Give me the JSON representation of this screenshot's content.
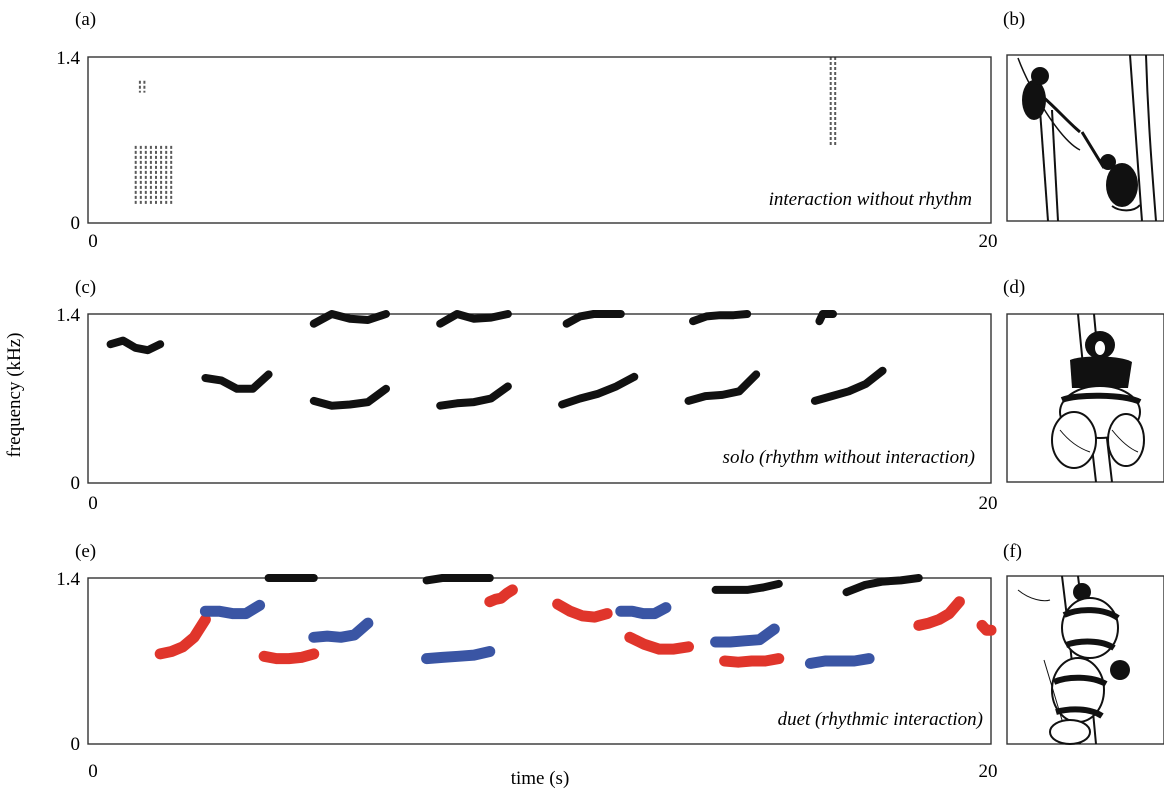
{
  "chart_data": [
    {
      "type": "spectrogram",
      "panel_label": "(a)",
      "xlim": [
        0,
        20
      ],
      "ylim": [
        0,
        1.4
      ],
      "x_ticks": [
        "0",
        "20"
      ],
      "y_ticks": [
        "0",
        "1.4"
      ],
      "annotation": "interaction without rhythm",
      "series": [
        {
          "color": "#222222",
          "calls": [
            {
              "t0": 1.0,
              "t1": 1.9,
              "f": [
                0.15,
                0.65
              ]
            },
            {
              "t0": 1.1,
              "t1": 1.3,
              "f": [
                1.1,
                1.2
              ]
            },
            {
              "t0": 16.4,
              "t1": 16.6,
              "f": [
                0.65,
                1.4
              ]
            }
          ]
        }
      ]
    },
    {
      "type": "spectrogram",
      "panel_label": "(c)",
      "xlim": [
        0,
        20
      ],
      "ylim": [
        0,
        1.4
      ],
      "x_ticks": [
        "0",
        "20"
      ],
      "y_ticks": [
        "0",
        "1.4"
      ],
      "annotation": "solo (rhythm without interaction)",
      "series": [
        {
          "color": "#111111",
          "calls": [
            {
              "t0": 0.5,
              "t1": 1.6,
              "f": [
                1.15,
                1.18,
                1.12,
                1.1,
                1.15
              ]
            },
            {
              "t0": 2.6,
              "t1": 4.0,
              "f": [
                0.87,
                0.85,
                0.78,
                0.78,
                0.9
              ]
            },
            {
              "t0": 5.0,
              "t1": 6.6,
              "f": [
                0.68,
                0.64,
                0.65,
                0.67,
                0.78
              ]
            },
            {
              "t0": 7.8,
              "t1": 9.3,
              "f": [
                0.64,
                0.66,
                0.67,
                0.7,
                0.8
              ]
            },
            {
              "t0": 10.5,
              "t1": 12.1,
              "f": [
                0.65,
                0.7,
                0.74,
                0.8,
                0.88
              ]
            },
            {
              "t0": 13.3,
              "t1": 14.8,
              "f": [
                0.68,
                0.72,
                0.73,
                0.76,
                0.9
              ]
            },
            {
              "t0": 16.1,
              "t1": 17.6,
              "f": [
                0.68,
                0.72,
                0.76,
                0.82,
                0.93
              ]
            },
            {
              "t0": 5.0,
              "t1": 6.6,
              "f": [
                1.32,
                1.4,
                1.36,
                1.35,
                1.4
              ]
            },
            {
              "t0": 7.8,
              "t1": 9.3,
              "f": [
                1.32,
                1.4,
                1.36,
                1.37,
                1.4
              ]
            },
            {
              "t0": 10.6,
              "t1": 11.8,
              "f": [
                1.32,
                1.38,
                1.4,
                1.4,
                1.4
              ]
            },
            {
              "t0": 13.4,
              "t1": 14.6,
              "f": [
                1.34,
                1.38,
                1.39,
                1.39,
                1.4
              ]
            },
            {
              "t0": 16.2,
              "t1": 16.5,
              "f": [
                1.34,
                1.4,
                1.4,
                1.4,
                1.4
              ]
            }
          ]
        }
      ]
    },
    {
      "type": "spectrogram",
      "panel_label": "(e)",
      "xlim": [
        0,
        20
      ],
      "ylim": [
        0,
        1.4
      ],
      "x_ticks": [
        "0",
        "20"
      ],
      "y_ticks": [
        "0",
        "1.4"
      ],
      "xlabel": "time (s)",
      "annotation": "duet (rhythmic interaction)",
      "series": [
        {
          "color": "#e0352b",
          "calls": [
            {
              "t0": 1.6,
              "t1": 2.6,
              "f": [
                0.76,
                0.78,
                0.82,
                0.9,
                1.05
              ]
            },
            {
              "t0": 3.9,
              "t1": 5.0,
              "f": [
                0.74,
                0.72,
                0.72,
                0.73,
                0.76
              ]
            },
            {
              "t0": 8.9,
              "t1": 9.4,
              "f": [
                1.2,
                1.22,
                1.23,
                1.27,
                1.3
              ]
            },
            {
              "t0": 10.4,
              "t1": 11.5,
              "f": [
                1.18,
                1.12,
                1.08,
                1.07,
                1.1
              ]
            },
            {
              "t0": 12.0,
              "t1": 13.3,
              "f": [
                0.9,
                0.84,
                0.8,
                0.8,
                0.82
              ]
            },
            {
              "t0": 14.1,
              "t1": 15.3,
              "f": [
                0.7,
                0.69,
                0.7,
                0.7,
                0.72
              ]
            },
            {
              "t0": 18.4,
              "t1": 19.3,
              "f": [
                1.0,
                1.02,
                1.05,
                1.1,
                1.2
              ]
            },
            {
              "t0": 19.8,
              "t1": 20.0,
              "f": [
                1.0,
                0.98,
                0.96,
                0.96,
                0.96
              ]
            }
          ]
        },
        {
          "color": "#3a55a4",
          "calls": [
            {
              "t0": 2.6,
              "t1": 3.8,
              "f": [
                1.12,
                1.12,
                1.1,
                1.1,
                1.17
              ]
            },
            {
              "t0": 5.0,
              "t1": 6.2,
              "f": [
                0.9,
                0.91,
                0.9,
                0.92,
                1.02
              ]
            },
            {
              "t0": 7.5,
              "t1": 8.9,
              "f": [
                0.72,
                0.73,
                0.74,
                0.75,
                0.78
              ]
            },
            {
              "t0": 11.8,
              "t1": 12.8,
              "f": [
                1.12,
                1.12,
                1.1,
                1.1,
                1.15
              ]
            },
            {
              "t0": 13.9,
              "t1": 15.2,
              "f": [
                0.86,
                0.86,
                0.87,
                0.88,
                0.97
              ]
            },
            {
              "t0": 16.0,
              "t1": 17.3,
              "f": [
                0.68,
                0.7,
                0.7,
                0.7,
                0.72
              ]
            }
          ]
        },
        {
          "color": "#111111",
          "calls": [
            {
              "t0": 4.0,
              "t1": 5.0,
              "f": [
                1.4,
                1.4,
                1.4,
                1.4,
                1.4
              ]
            },
            {
              "t0": 7.5,
              "t1": 8.9,
              "f": [
                1.38,
                1.4,
                1.4,
                1.4,
                1.4
              ]
            },
            {
              "t0": 13.9,
              "t1": 15.3,
              "f": [
                1.3,
                1.3,
                1.3,
                1.32,
                1.35
              ]
            },
            {
              "t0": 16.8,
              "t1": 18.4,
              "f": [
                1.28,
                1.34,
                1.37,
                1.38,
                1.4
              ]
            }
          ]
        }
      ]
    }
  ],
  "shared": {
    "ylabel": "frequency (kHz)"
  },
  "illustrations": [
    {
      "panel_label": "(b)",
      "subject": "two-lemurs-reaching-illustration"
    },
    {
      "panel_label": "(d)",
      "subject": "single-lemur-calling-illustration"
    },
    {
      "panel_label": "(f)",
      "subject": "two-lemurs-duetting-illustration"
    }
  ]
}
